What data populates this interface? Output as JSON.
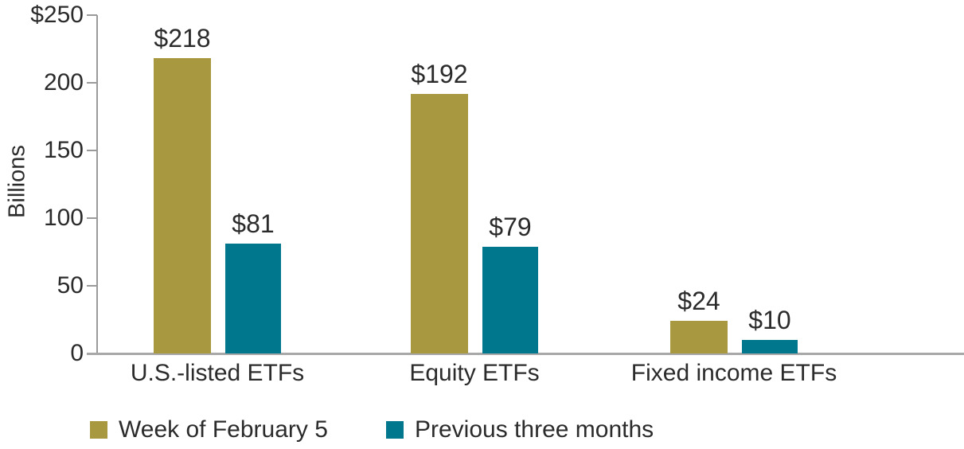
{
  "chart_data": {
    "type": "bar",
    "categories": [
      "U.S.-listed ETFs",
      "Equity ETFs",
      "Fixed income ETFs"
    ],
    "series": [
      {
        "name": "Week of February 5",
        "color": "#a89941",
        "values": [
          218,
          192,
          24
        ],
        "data_labels": [
          "$218",
          "$192",
          "$24"
        ]
      },
      {
        "name": "Previous three months",
        "color": "#00778d",
        "values": [
          81,
          79,
          10
        ],
        "data_labels": [
          "$81",
          "$79",
          "$10"
        ]
      }
    ],
    "ylabel": "Billions",
    "ylim": [
      0,
      250
    ],
    "ytick_values": [
      0,
      50,
      100,
      150,
      200,
      250
    ],
    "ytick_labels": [
      "0",
      "50",
      "100",
      "150",
      "200",
      "$250"
    ],
    "grid": false,
    "legend_position": "bottom-left"
  },
  "colors": {
    "series_week": "#a89941",
    "series_prev": "#00778d",
    "axis_line": "#9a9a9a",
    "baseline": "#a8a8a8",
    "text": "#2b2b2b",
    "background": "#ffffff"
  }
}
